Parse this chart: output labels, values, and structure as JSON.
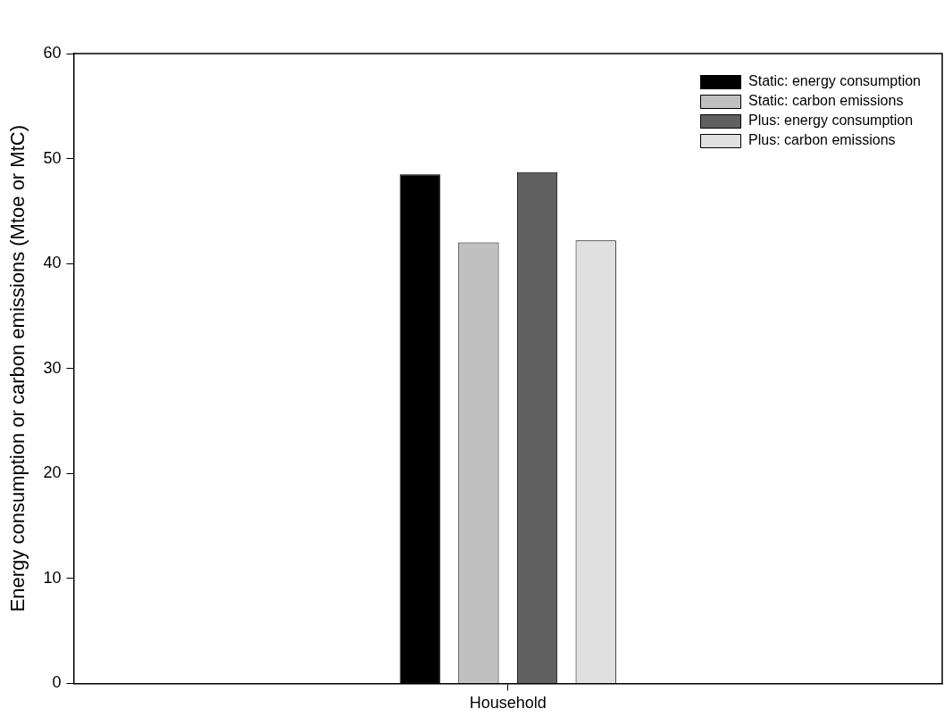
{
  "chart_data": {
    "type": "bar",
    "ylabel": "Energy consumption or carbon emissions (Mtoe or MtC)",
    "categories": [
      "Household"
    ],
    "series": [
      {
        "name": "Static: energy consumption",
        "color": "#000000",
        "values": [
          48.5
        ]
      },
      {
        "name": "Static: carbon emissions",
        "color": "#c0c0c0",
        "values": [
          42.0
        ]
      },
      {
        "name": "Plus: energy consumption",
        "color": "#606060",
        "values": [
          48.7
        ]
      },
      {
        "name": "Plus: carbon emissions",
        "color": "#e0e0e0",
        "values": [
          42.2
        ]
      }
    ],
    "ylim": [
      0,
      60
    ],
    "yticks": [
      0,
      10,
      20,
      30,
      40,
      50,
      60
    ],
    "grid": false,
    "legend": "top right"
  }
}
